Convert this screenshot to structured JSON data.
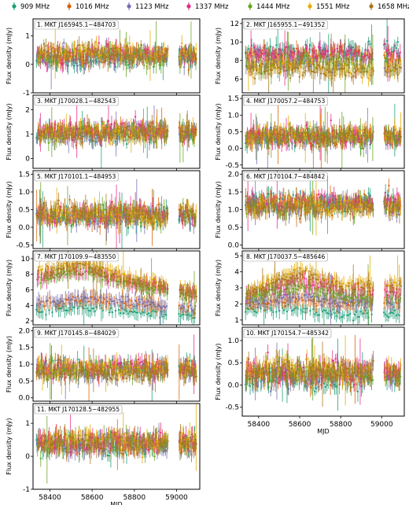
{
  "chart_data": {
    "type": "scatter",
    "xlabel": "MJD",
    "xlim": [
      58320,
      59110
    ],
    "xticks": [
      58400,
      58600,
      58800,
      59000
    ],
    "legend": {
      "placement": "top",
      "entries": [
        {
          "name": "909 MHz",
          "color": "#1b9e77"
        },
        {
          "name": "1016 MHz",
          "color": "#d95f02"
        },
        {
          "name": "1123 MHz",
          "color": "#7570b3"
        },
        {
          "name": "1337 MHz",
          "color": "#e7298a"
        },
        {
          "name": "1444 MHz",
          "color": "#66a61e"
        },
        {
          "name": "1551 MHz",
          "color": "#e6ab02"
        },
        {
          "name": "1658 MHz",
          "color": "#a6761d"
        }
      ]
    },
    "panels": [
      {
        "id": 1,
        "title": "1. MKT J165945.1−484703",
        "ylabel": "Flux density (mJy)",
        "ylim": [
          -1.0,
          1.6
        ],
        "yticks": [
          -1,
          0,
          1
        ],
        "show_xticks": false,
        "series": [
          {
            "name": "909 MHz",
            "level": 0.15
          },
          {
            "name": "1016 MHz",
            "level": 0.3
          },
          {
            "name": "1123 MHz",
            "level": 0.25
          },
          {
            "name": "1337 MHz",
            "level": 0.35
          },
          {
            "name": "1444 MHz",
            "level": 0.3
          },
          {
            "name": "1551 MHz",
            "level": 0.4
          },
          {
            "name": "1658 MHz",
            "level": 0.35
          }
        ]
      },
      {
        "id": 2,
        "title": "2. MKT J165955.1−491352",
        "ylabel": "Flux density (mJy)",
        "ylim": [
          4.5,
          12.5
        ],
        "yticks": [
          6,
          8,
          10,
          12
        ],
        "show_xticks": false,
        "series": [
          {
            "name": "909 MHz",
            "level": 9.0
          },
          {
            "name": "1016 MHz",
            "level": 8.5
          },
          {
            "name": "1123 MHz",
            "level": 8.0
          },
          {
            "name": "1337 MHz",
            "level": 8.8
          },
          {
            "name": "1444 MHz",
            "level": 7.6
          },
          {
            "name": "1551 MHz",
            "level": 7.2
          },
          {
            "name": "1658 MHz",
            "level": 7.0
          }
        ]
      },
      {
        "id": 3,
        "title": "3. MKT J170028.1−482543",
        "ylabel": "Flux density (mJy)",
        "ylim": [
          -0.4,
          2.6
        ],
        "yticks": [
          0,
          1,
          2
        ],
        "show_xticks": false,
        "series": [
          {
            "name": "909 MHz",
            "level": 1.0
          },
          {
            "name": "1016 MHz",
            "level": 1.1
          },
          {
            "name": "1123 MHz",
            "level": 1.0
          },
          {
            "name": "1337 MHz",
            "level": 1.15
          },
          {
            "name": "1444 MHz",
            "level": 1.05
          },
          {
            "name": "1551 MHz",
            "level": 1.1
          },
          {
            "name": "1658 MHz",
            "level": 1.05
          }
        ]
      },
      {
        "id": 4,
        "title": "4. MKT J170057.2−484753",
        "ylabel": "Flux density (mJy)",
        "ylim": [
          -0.6,
          1.6
        ],
        "yticks": [
          -0.5,
          0.0,
          0.5,
          1.0,
          1.5
        ],
        "show_xticks": false,
        "series": [
          {
            "name": "909 MHz",
            "level": 0.3
          },
          {
            "name": "1016 MHz",
            "level": 0.35
          },
          {
            "name": "1123 MHz",
            "level": 0.3
          },
          {
            "name": "1337 MHz",
            "level": 0.4
          },
          {
            "name": "1444 MHz",
            "level": 0.35
          },
          {
            "name": "1551 MHz",
            "level": 0.4
          },
          {
            "name": "1658 MHz",
            "level": 0.35
          }
        ]
      },
      {
        "id": 5,
        "title": "5. MKT J170101.1−484953",
        "ylabel": "Flux density (mJy)",
        "ylim": [
          -0.6,
          1.6
        ],
        "yticks": [
          -0.5,
          0.0,
          0.5,
          1.0,
          1.5
        ],
        "show_xticks": false,
        "series": [
          {
            "name": "909 MHz",
            "level": 0.3
          },
          {
            "name": "1016 MHz",
            "level": 0.35
          },
          {
            "name": "1123 MHz",
            "level": 0.3
          },
          {
            "name": "1337 MHz",
            "level": 0.4
          },
          {
            "name": "1444 MHz",
            "level": 0.35
          },
          {
            "name": "1551 MHz",
            "level": 0.4
          },
          {
            "name": "1658 MHz",
            "level": 0.35
          }
        ]
      },
      {
        "id": 6,
        "title": "6. MKT J170104.7−484842",
        "ylabel": "Flux density (mJy)",
        "ylim": [
          -0.1,
          2.1
        ],
        "yticks": [
          0.0,
          0.5,
          1.0,
          1.5,
          2.0
        ],
        "show_xticks": false,
        "series": [
          {
            "name": "909 MHz",
            "level": 1.2
          },
          {
            "name": "1016 MHz",
            "level": 1.15
          },
          {
            "name": "1123 MHz",
            "level": 1.1
          },
          {
            "name": "1337 MHz",
            "level": 1.2
          },
          {
            "name": "1444 MHz",
            "level": 1.1
          },
          {
            "name": "1551 MHz",
            "level": 1.1
          },
          {
            "name": "1658 MHz",
            "level": 1.05
          }
        ]
      },
      {
        "id": 7,
        "title": "7. MKT J170109.9−483550",
        "ylabel": "Flux density (mJy)",
        "ylim": [
          1.5,
          11.0
        ],
        "yticks": [
          2,
          4,
          6,
          8,
          10
        ],
        "show_xticks": false,
        "series": [
          {
            "name": "909 MHz",
            "level": 3.3,
            "trend": [
              [
                58350,
                3.3
              ],
              [
                58600,
                3.7
              ],
              [
                58800,
                3.2
              ],
              [
                59100,
                2.7
              ]
            ]
          },
          {
            "name": "1016 MHz",
            "level": 4.2,
            "trend": [
              [
                58350,
                4.2
              ],
              [
                58600,
                4.8
              ],
              [
                58800,
                4.3
              ],
              [
                59100,
                3.3
              ]
            ]
          },
          {
            "name": "1123 MHz",
            "level": 4.5,
            "trend": [
              [
                58350,
                4.5
              ],
              [
                58600,
                5.0
              ],
              [
                58800,
                4.5
              ],
              [
                59100,
                3.4
              ]
            ]
          },
          {
            "name": "1337 MHz",
            "level": 7.5,
            "trend": [
              [
                58350,
                7.5
              ],
              [
                58550,
                8.5
              ],
              [
                58800,
                6.8
              ],
              [
                59100,
                5.5
              ]
            ]
          },
          {
            "name": "1444 MHz",
            "level": 7.2,
            "trend": [
              [
                58350,
                7.2
              ],
              [
                58550,
                8.3
              ],
              [
                58800,
                6.5
              ],
              [
                59100,
                5.0
              ]
            ]
          },
          {
            "name": "1551 MHz",
            "level": 8.5,
            "trend": [
              [
                58350,
                8.5
              ],
              [
                58550,
                9.6
              ],
              [
                58800,
                7.5
              ],
              [
                59100,
                5.8
              ]
            ]
          },
          {
            "name": "1658 MHz",
            "level": 8.0,
            "trend": [
              [
                58350,
                8.0
              ],
              [
                58550,
                9.2
              ],
              [
                58800,
                7.0
              ],
              [
                59100,
                5.6
              ]
            ]
          }
        ]
      },
      {
        "id": 8,
        "title": "8. MKT J170037.5−485646",
        "ylabel": "Flux density (mJy)",
        "ylim": [
          0.7,
          5.3
        ],
        "yticks": [
          1,
          2,
          3,
          4,
          5
        ],
        "show_xticks": false,
        "series": [
          {
            "name": "909 MHz",
            "level": 1.5,
            "trend": [
              [
                58350,
                1.7
              ],
              [
                58600,
                1.6
              ],
              [
                58800,
                1.4
              ],
              [
                59100,
                1.4
              ]
            ]
          },
          {
            "name": "1016 MHz",
            "level": 2.0,
            "trend": [
              [
                58350,
                2.0
              ],
              [
                58600,
                2.3
              ],
              [
                58800,
                2.0
              ],
              [
                59100,
                2.0
              ]
            ]
          },
          {
            "name": "1123 MHz",
            "level": 2.1,
            "trend": [
              [
                58350,
                2.2
              ],
              [
                58600,
                2.5
              ],
              [
                58800,
                2.1
              ],
              [
                59100,
                2.1
              ]
            ]
          },
          {
            "name": "1337 MHz",
            "level": 2.7,
            "trend": [
              [
                58350,
                2.6
              ],
              [
                58600,
                3.4
              ],
              [
                58800,
                2.7
              ],
              [
                59100,
                2.6
              ]
            ]
          },
          {
            "name": "1444 MHz",
            "level": 2.5,
            "trend": [
              [
                58350,
                2.4
              ],
              [
                58600,
                3.1
              ],
              [
                58800,
                2.5
              ],
              [
                59100,
                2.3
              ]
            ]
          },
          {
            "name": "1551 MHz",
            "level": 3.2,
            "trend": [
              [
                58350,
                2.8
              ],
              [
                58600,
                4.2
              ],
              [
                58800,
                3.2
              ],
              [
                59100,
                3.3
              ]
            ]
          },
          {
            "name": "1658 MHz",
            "level": 2.9,
            "trend": [
              [
                58350,
                2.7
              ],
              [
                58600,
                3.9
              ],
              [
                58800,
                3.0
              ],
              [
                59100,
                3.1
              ]
            ]
          }
        ]
      },
      {
        "id": 9,
        "title": "9. MKT J170145.8−484029",
        "ylabel": "Flux density (mJy)",
        "ylim": [
          -0.1,
          2.1
        ],
        "yticks": [
          0.0,
          0.5,
          1.0,
          1.5,
          2.0
        ],
        "show_xticks": false,
        "series": [
          {
            "name": "909 MHz",
            "level": 0.9
          },
          {
            "name": "1016 MHz",
            "level": 0.85
          },
          {
            "name": "1123 MHz",
            "level": 0.8
          },
          {
            "name": "1337 MHz",
            "level": 0.9
          },
          {
            "name": "1444 MHz",
            "level": 0.8
          },
          {
            "name": "1551 MHz",
            "level": 0.85
          },
          {
            "name": "1658 MHz",
            "level": 0.75
          }
        ]
      },
      {
        "id": 10,
        "title": "10. MKT J170154.7−485342",
        "ylabel": "Flux density (mJy)",
        "ylim": [
          -0.7,
          1.3
        ],
        "yticks": [
          -0.5,
          0.0,
          0.5,
          1.0
        ],
        "show_xticks": true,
        "series": [
          {
            "name": "909 MHz",
            "level": 0.15
          },
          {
            "name": "1016 MHz",
            "level": 0.25
          },
          {
            "name": "1123 MHz",
            "level": 0.2
          },
          {
            "name": "1337 MHz",
            "level": 0.3
          },
          {
            "name": "1444 MHz",
            "level": 0.25
          },
          {
            "name": "1551 MHz",
            "level": 0.35
          },
          {
            "name": "1658 MHz",
            "level": 0.3
          }
        ]
      },
      {
        "id": 11,
        "title": "11. MKT J170128.5−482955",
        "ylabel": "Flux density (mJy)",
        "ylim": [
          -1.0,
          1.6
        ],
        "yticks": [
          -1,
          0,
          1
        ],
        "show_xticks": true,
        "series": [
          {
            "name": "909 MHz",
            "level": 0.35
          },
          {
            "name": "1016 MHz",
            "level": 0.4
          },
          {
            "name": "1123 MHz",
            "level": 0.35
          },
          {
            "name": "1337 MHz",
            "level": 0.45
          },
          {
            "name": "1444 MHz",
            "level": 0.4
          },
          {
            "name": "1551 MHz",
            "level": 0.45
          },
          {
            "name": "1658 MHz",
            "level": 0.4
          }
        ]
      }
    ]
  }
}
